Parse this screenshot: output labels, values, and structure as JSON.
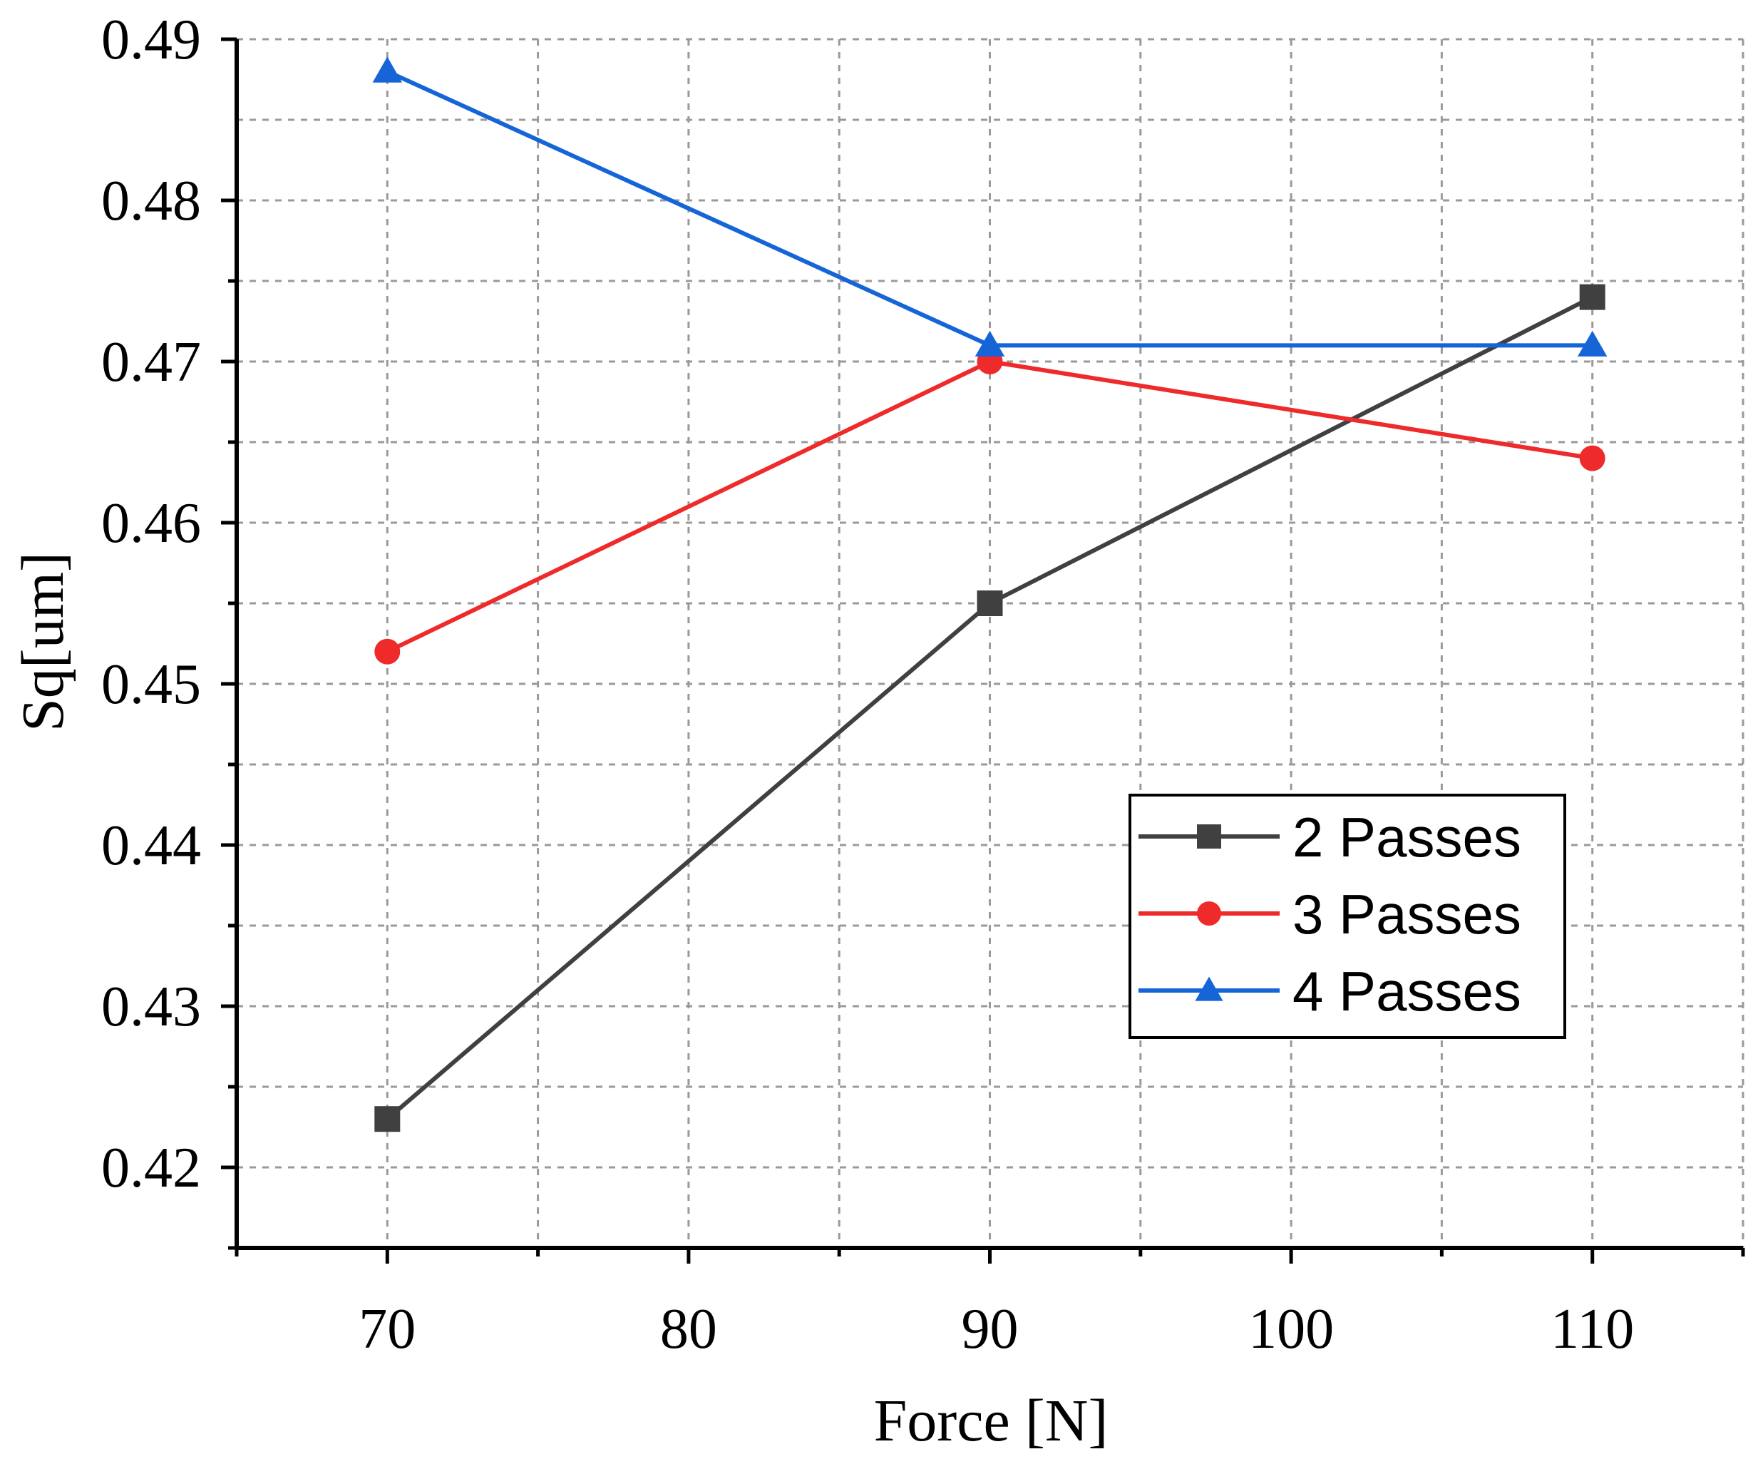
{
  "chart_data": {
    "type": "line",
    "title": "",
    "xlabel": "Force [N]",
    "ylabel": "Sq[um]",
    "x": [
      70,
      90,
      110
    ],
    "xlim": [
      65,
      115
    ],
    "ylim": [
      0.415,
      0.49
    ],
    "xticks": [
      "70",
      "80",
      "90",
      "100",
      "110"
    ],
    "yticks": [
      "0.42",
      "0.43",
      "0.44",
      "0.45",
      "0.46",
      "0.47",
      "0.48",
      "0.49"
    ],
    "grid": true,
    "legend_position": "bottom-right",
    "series": [
      {
        "name": "2 Passes",
        "values": [
          0.423,
          0.455,
          0.474
        ],
        "color": "#404040",
        "marker": "square"
      },
      {
        "name": "3 Passes",
        "values": [
          0.452,
          0.47,
          0.464
        ],
        "color": "#ee2a2a",
        "marker": "circle"
      },
      {
        "name": "4 Passes",
        "values": [
          0.488,
          0.471,
          0.471
        ],
        "color": "#1565d8",
        "marker": "triangle"
      }
    ]
  }
}
